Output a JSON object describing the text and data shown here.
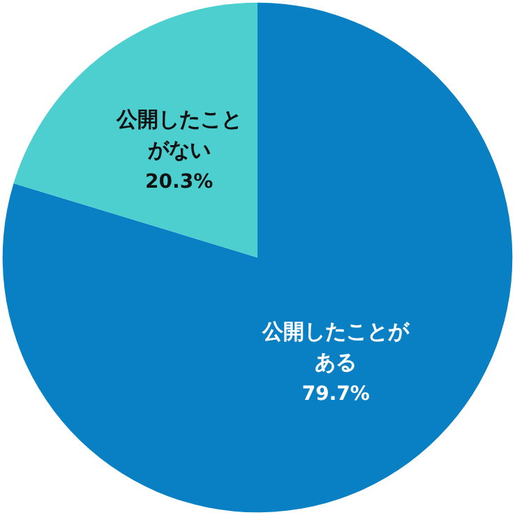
{
  "chart_data": {
    "type": "pie",
    "categories": [
      "公開したことがある",
      "公開したことがない"
    ],
    "values": [
      79.7,
      20.3
    ],
    "colors": [
      "#0a80c4",
      "#4ecfcf"
    ],
    "value_labels": [
      "79.7%",
      "20.3%"
    ],
    "legend": false
  }
}
